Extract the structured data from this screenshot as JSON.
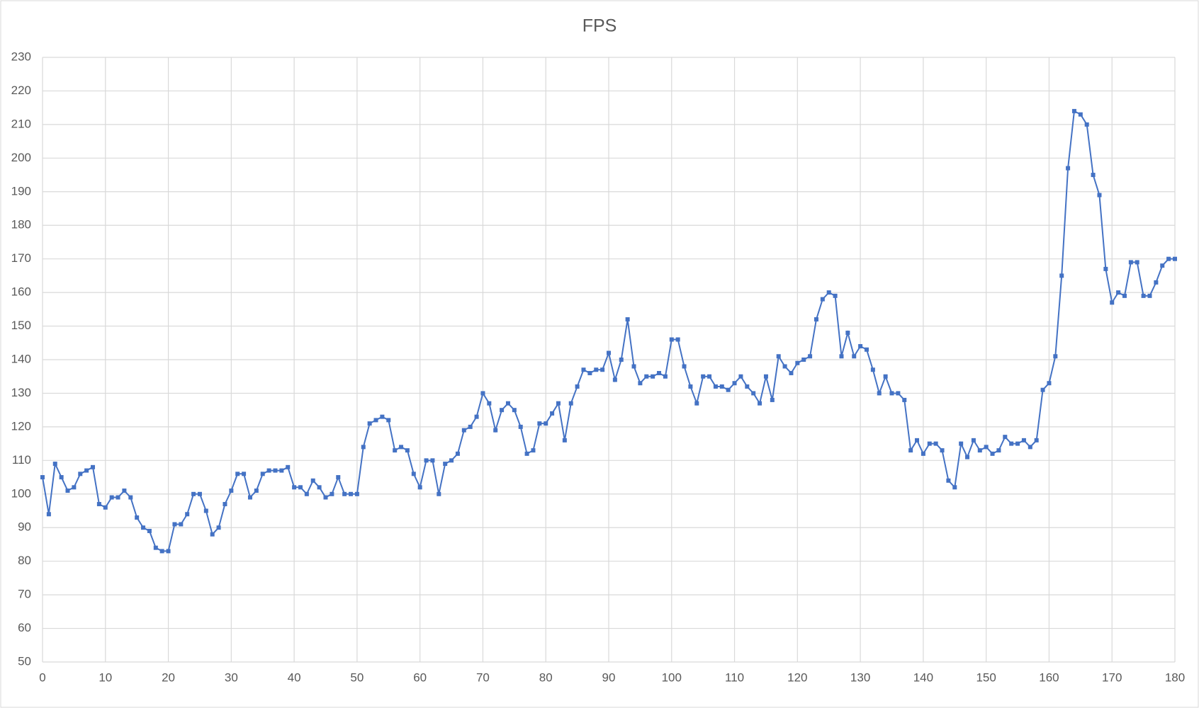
{
  "chart_data": {
    "type": "line",
    "title": "FPS",
    "x": [
      0,
      1,
      2,
      3,
      4,
      5,
      6,
      7,
      8,
      9,
      10,
      11,
      12,
      13,
      14,
      15,
      16,
      17,
      18,
      19,
      20,
      21,
      22,
      23,
      24,
      25,
      26,
      27,
      28,
      29,
      30,
      31,
      32,
      33,
      34,
      35,
      36,
      37,
      38,
      39,
      40,
      41,
      42,
      43,
      44,
      45,
      46,
      47,
      48,
      49,
      50,
      51,
      52,
      53,
      54,
      55,
      56,
      57,
      58,
      59,
      60,
      61,
      62,
      63,
      64,
      65,
      66,
      67,
      68,
      69,
      70,
      71,
      72,
      73,
      74,
      75,
      76,
      77,
      78,
      79,
      80,
      81,
      82,
      83,
      84,
      85,
      86,
      87,
      88,
      89,
      90,
      91,
      92,
      93,
      94,
      95,
      96,
      97,
      98,
      99,
      100,
      101,
      102,
      103,
      104,
      105,
      106,
      107,
      108,
      109,
      110,
      111,
      112,
      113,
      114,
      115,
      116,
      117,
      118,
      119,
      120,
      121,
      122,
      123,
      124,
      125,
      126,
      127,
      128,
      129,
      130,
      131,
      132,
      133,
      134,
      135,
      136,
      137,
      138,
      139,
      140,
      141,
      142,
      143,
      144,
      145,
      146,
      147,
      148,
      149,
      150,
      151,
      152,
      153,
      154,
      155,
      156,
      157,
      158,
      159,
      160,
      161,
      162,
      163,
      164,
      165,
      166,
      167,
      168,
      169,
      170,
      171,
      172,
      173,
      174,
      175,
      176,
      177,
      178,
      179,
      180
    ],
    "series": [
      {
        "color": "#4472c4",
        "values": [
          105,
          94,
          109,
          105,
          101,
          102,
          106,
          107,
          108,
          97,
          96,
          99,
          99,
          101,
          99,
          93,
          90,
          89,
          84,
          83,
          83,
          91,
          91,
          94,
          100,
          100,
          95,
          88,
          90,
          97,
          101,
          106,
          106,
          99,
          101,
          106,
          107,
          107,
          107,
          108,
          102,
          102,
          100,
          104,
          102,
          99,
          100,
          105,
          100,
          100,
          100,
          114,
          121,
          122,
          123,
          122,
          113,
          114,
          113,
          106,
          102,
          110,
          110,
          100,
          109,
          110,
          112,
          119,
          120,
          123,
          130,
          127,
          119,
          125,
          127,
          125,
          120,
          112,
          113,
          121,
          121,
          124,
          127,
          116,
          127,
          132,
          137,
          136,
          137,
          137,
          142,
          134,
          140,
          152,
          138,
          133,
          135,
          135,
          136,
          135,
          146,
          146,
          138,
          132,
          127,
          135,
          135,
          132,
          132,
          131,
          133,
          135,
          132,
          130,
          127,
          135,
          128,
          141,
          138,
          136,
          139,
          140,
          141,
          152,
          158,
          160,
          159,
          141,
          148,
          141,
          144,
          143,
          137,
          130,
          135,
          130,
          130,
          128,
          113,
          116,
          112,
          115,
          115,
          113,
          104,
          102,
          115,
          111,
          116,
          113,
          114,
          112,
          113,
          117,
          115,
          115,
          116,
          114,
          116,
          131,
          133,
          141,
          165,
          197,
          214,
          213,
          210,
          195,
          189,
          167,
          157,
          160,
          159,
          169,
          169,
          159,
          159,
          163,
          168,
          170,
          170
        ]
      }
    ],
    "xlim": [
      0,
      180
    ],
    "xticks": [
      0,
      10,
      20,
      30,
      40,
      50,
      60,
      70,
      80,
      90,
      100,
      110,
      120,
      130,
      140,
      150,
      160,
      170,
      180
    ],
    "ylim": [
      50,
      230
    ],
    "yticks": [
      50,
      60,
      70,
      80,
      90,
      100,
      110,
      120,
      130,
      140,
      150,
      160,
      170,
      180,
      190,
      200,
      210,
      220,
      230
    ],
    "grid": true
  }
}
